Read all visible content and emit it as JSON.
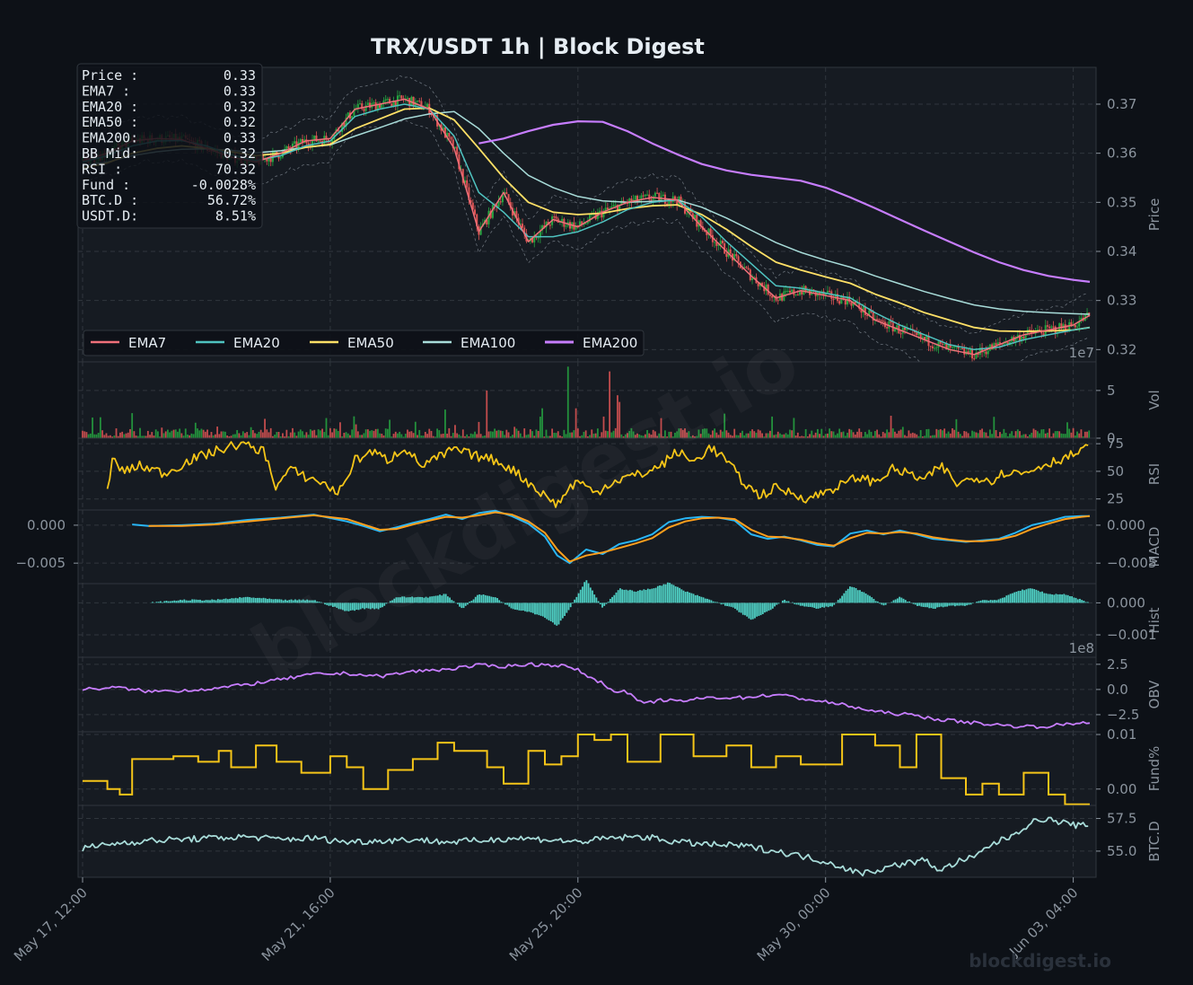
{
  "title": "TRX/USDT  1h  |  Block Digest",
  "watermark": "blockdigest.io",
  "footer_watermark": "blockdigest.io",
  "colors": {
    "background": "#0d1117",
    "panel": "#161b22",
    "grid": "#30363d",
    "up": "#26a641",
    "down": "#e05555",
    "ema7": "#f0707a",
    "ema20": "#4fc3c0",
    "ema50": "#ffe066",
    "ema100": "#a8dcd9",
    "ema200": "#c77dff",
    "rsi": "#f5c518",
    "macd": "#29b6f6",
    "signal": "#ff9f1c",
    "hist": "#4fd1c5",
    "obv": "#c77dff",
    "funding": "#f5c518",
    "btcd": "#a8dcd9"
  },
  "info_box": [
    {
      "label": "Price :",
      "value": "0.33"
    },
    {
      "label": "EMA7  :",
      "value": "0.33"
    },
    {
      "label": "EMA20 :",
      "value": "0.32"
    },
    {
      "label": "EMA50 :",
      "value": "0.32"
    },
    {
      "label": "EMA200:",
      "value": "0.33"
    },
    {
      "label": "BB Mid:",
      "value": "0.32"
    },
    {
      "label": "RSI   :",
      "value": "70.32"
    },
    {
      "label": "Fund  :",
      "value": "-0.0028%"
    },
    {
      "label": "BTC.D :",
      "value": "56.72%"
    },
    {
      "label": "USDT.D:",
      "value": "8.51%"
    }
  ],
  "legend": [
    "EMA7",
    "EMA20",
    "EMA50",
    "EMA100",
    "EMA200"
  ],
  "x_ticks": [
    "May 17, 12:00",
    "May 21, 16:00",
    "May 25, 20:00",
    "May 30, 00:00",
    "Jun 03, 04:00"
  ],
  "chart_data": [
    {
      "type": "line",
      "panel": "price",
      "ylabel": "Price",
      "ylim": [
        0.3175,
        0.3775
      ],
      "yticks": [
        0.32,
        0.33,
        0.34,
        0.35,
        0.36,
        0.37
      ],
      "ytick_labels": [
        "0.32",
        "0.33",
        "0.34",
        "0.35",
        "0.36",
        "0.37"
      ],
      "x": [
        0,
        30,
        60,
        90,
        120,
        150,
        180,
        210,
        240,
        270,
        300,
        330,
        360,
        390,
        420,
        450,
        480,
        510,
        540,
        570,
        600,
        630,
        660,
        690,
        720,
        750,
        780,
        810,
        840,
        870,
        900,
        930,
        960,
        990,
        1020,
        1050,
        1080,
        1110,
        1140,
        1170,
        1200,
        1220
      ],
      "series": [
        {
          "name": "EMA7",
          "values": [
            0.3585,
            0.36,
            0.3625,
            0.363,
            0.3628,
            0.361,
            0.3592,
            0.3582,
            0.36,
            0.3625,
            0.363,
            0.369,
            0.37,
            0.371,
            0.369,
            0.361,
            0.344,
            0.352,
            0.342,
            0.3465,
            0.345,
            0.348,
            0.35,
            0.351,
            0.3505,
            0.345,
            0.34,
            0.335,
            0.3305,
            0.332,
            0.331,
            0.33,
            0.326,
            0.324,
            0.322,
            0.32,
            0.319,
            0.321,
            0.323,
            0.324,
            0.325,
            0.327
          ]
        },
        {
          "name": "EMA20",
          "values": [
            0.3582,
            0.3595,
            0.3615,
            0.3625,
            0.3626,
            0.3615,
            0.3597,
            0.3585,
            0.3595,
            0.3615,
            0.3625,
            0.3675,
            0.369,
            0.37,
            0.369,
            0.3635,
            0.352,
            0.348,
            0.343,
            0.343,
            0.344,
            0.346,
            0.3485,
            0.35,
            0.3505,
            0.347,
            0.342,
            0.3375,
            0.333,
            0.3325,
            0.3315,
            0.3305,
            0.3275,
            0.325,
            0.323,
            0.321,
            0.32,
            0.3205,
            0.322,
            0.323,
            0.324,
            0.3245
          ]
        },
        {
          "name": "EMA50",
          "values": [
            0.357,
            0.358,
            0.36,
            0.361,
            0.3615,
            0.361,
            0.3603,
            0.3595,
            0.36,
            0.3612,
            0.3618,
            0.365,
            0.367,
            0.369,
            0.3692,
            0.3668,
            0.361,
            0.355,
            0.35,
            0.348,
            0.3475,
            0.3478,
            0.3487,
            0.3493,
            0.3495,
            0.3475,
            0.3445,
            0.341,
            0.3378,
            0.3362,
            0.3348,
            0.3335,
            0.3313,
            0.3295,
            0.3275,
            0.326,
            0.3245,
            0.3238,
            0.3237,
            0.3238,
            0.324,
            0.3245
          ]
        },
        {
          "name": "EMA100",
          "values": [
            0.3575,
            0.3582,
            0.3595,
            0.3603,
            0.3608,
            0.3609,
            0.3606,
            0.3601,
            0.3605,
            0.3612,
            0.3617,
            0.3635,
            0.3652,
            0.367,
            0.368,
            0.3685,
            0.365,
            0.36,
            0.3555,
            0.353,
            0.3512,
            0.3503,
            0.35,
            0.3502,
            0.3505,
            0.349,
            0.3468,
            0.3443,
            0.3418,
            0.3398,
            0.3382,
            0.3368,
            0.335,
            0.3334,
            0.3318,
            0.3304,
            0.3291,
            0.3283,
            0.3278,
            0.3275,
            0.3273,
            0.3272
          ]
        },
        {
          "name": "EMA200",
          "values": [
            null,
            null,
            null,
            null,
            null,
            null,
            null,
            null,
            null,
            null,
            null,
            null,
            null,
            null,
            null,
            null,
            0.362,
            0.363,
            0.3645,
            0.3658,
            0.3665,
            0.3664,
            0.3645,
            0.362,
            0.3598,
            0.3578,
            0.3565,
            0.3556,
            0.355,
            0.3544,
            0.353,
            0.351,
            0.3488,
            0.3465,
            0.3442,
            0.342,
            0.3398,
            0.3378,
            0.3362,
            0.335,
            0.3342,
            0.3338
          ]
        }
      ]
    },
    {
      "type": "bar",
      "panel": "volume",
      "ylabel": "Vol",
      "scale_label": "1e7",
      "ylim": [
        0,
        8
      ],
      "yticks": [
        0,
        5
      ],
      "ytick_labels": [
        "0",
        "5"
      ],
      "spikes": [
        {
          "x": 440,
          "v": 3.0
        },
        {
          "x": 490,
          "v": 5.0
        },
        {
          "x": 588,
          "v": 7.5
        },
        {
          "x": 638,
          "v": 7.0
        },
        {
          "x": 648,
          "v": 4.5
        },
        {
          "x": 650,
          "v": 3.8
        }
      ]
    },
    {
      "type": "line",
      "panel": "rsi",
      "ylabel": "RSI",
      "ylim": [
        15,
        80
      ],
      "yticks": [
        25,
        50,
        75
      ],
      "ytick_labels": [
        "25",
        "50",
        "75"
      ],
      "x": [
        30,
        36,
        50,
        70,
        100,
        130,
        160,
        190,
        220,
        235,
        250,
        270,
        290,
        310,
        330,
        350,
        370,
        390,
        410,
        430,
        450,
        470,
        500,
        520,
        540,
        560,
        575,
        590,
        600,
        620,
        640,
        660,
        680,
        700,
        720,
        740,
        760,
        780,
        800,
        820,
        840,
        860,
        880,
        900,
        920,
        940,
        960,
        980,
        1000,
        1020,
        1040,
        1060,
        1080,
        1100,
        1120,
        1140,
        1160,
        1180,
        1200,
        1220
      ],
      "values": [
        32,
        60,
        50,
        55,
        48,
        60,
        68,
        75,
        68,
        35,
        52,
        45,
        40,
        30,
        60,
        68,
        60,
        72,
        55,
        62,
        70,
        65,
        60,
        52,
        40,
        28,
        20,
        35,
        42,
        30,
        40,
        45,
        48,
        55,
        68,
        58,
        72,
        60,
        40,
        28,
        35,
        30,
        25,
        32,
        38,
        45,
        40,
        52,
        48,
        42,
        55,
        38,
        45,
        42,
        50,
        48,
        55,
        60,
        65,
        72
      ]
    },
    {
      "type": "line",
      "panel": "macd",
      "ylabel": "MACD",
      "ylim": [
        -0.0077,
        0.002
      ],
      "yticks": [
        0.0,
        -0.005
      ],
      "ytick_labels": [
        "0.000",
        "−0.005"
      ],
      "x": [
        60,
        80,
        120,
        160,
        200,
        240,
        280,
        320,
        340,
        360,
        380,
        400,
        420,
        440,
        460,
        480,
        500,
        520,
        540,
        560,
        575,
        590,
        610,
        630,
        650,
        670,
        690,
        710,
        730,
        750,
        770,
        790,
        810,
        830,
        850,
        870,
        890,
        910,
        930,
        950,
        970,
        990,
        1010,
        1030,
        1050,
        1070,
        1090,
        1110,
        1130,
        1150,
        1170,
        1190,
        1210,
        1220
      ],
      "series": [
        {
          "name": "MACD",
          "values": [
            0.0001,
            -0.0001,
            0.0,
            0.0002,
            0.0007,
            0.001,
            0.0014,
            0.0005,
            -0.0001,
            -0.0008,
            -0.0003,
            0.0003,
            0.0008,
            0.0014,
            0.0008,
            0.0016,
            0.0019,
            0.0012,
            0.0002,
            -0.0015,
            -0.004,
            -0.005,
            -0.0032,
            -0.0038,
            -0.0025,
            -0.002,
            -0.0012,
            0.0004,
            0.0009,
            0.0011,
            0.001,
            0.0006,
            -0.0012,
            -0.0018,
            -0.0015,
            -0.002,
            -0.0026,
            -0.0028,
            -0.0011,
            -0.0007,
            -0.0012,
            -0.0007,
            -0.0012,
            -0.0018,
            -0.002,
            -0.0022,
            -0.002,
            -0.0018,
            -0.001,
            0.0,
            0.0005,
            0.0011,
            0.0012,
            0.0012
          ]
        },
        {
          "name": "Signal",
          "values": [
            null,
            -0.0001,
            -0.0001,
            0.0001,
            0.0005,
            0.0009,
            0.0013,
            0.0008,
            0.0001,
            -0.0006,
            -0.0005,
            0.0001,
            0.0006,
            0.0011,
            0.001,
            0.0013,
            0.0017,
            0.0014,
            0.0005,
            -0.001,
            -0.0032,
            -0.0048,
            -0.004,
            -0.0036,
            -0.003,
            -0.0024,
            -0.0017,
            -0.0003,
            0.0005,
            0.0009,
            0.001,
            0.0008,
            -0.0006,
            -0.0015,
            -0.0016,
            -0.0019,
            -0.0024,
            -0.0027,
            -0.0017,
            -0.001,
            -0.0011,
            -0.0009,
            -0.0011,
            -0.0016,
            -0.0019,
            -0.0021,
            -0.0021,
            -0.0019,
            -0.0014,
            -0.0005,
            0.0002,
            0.0008,
            0.0011,
            0.0012
          ]
        }
      ]
    },
    {
      "type": "bar",
      "panel": "hist",
      "ylabel": "Hist",
      "ylim": [
        -0.0017,
        0.0006
      ],
      "yticks": [
        0.0,
        -0.001
      ],
      "ytick_labels": [
        "0.000",
        "−0.001"
      ]
    },
    {
      "type": "line",
      "panel": "obv",
      "ylabel": "OBV",
      "scale_label": "1e8",
      "ylim": [
        -4.2,
        3.2
      ],
      "yticks": [
        2.5,
        0.0,
        -2.5
      ],
      "ytick_labels": [
        "2.5",
        "0.0",
        "−2.5"
      ],
      "x": [
        0,
        40,
        80,
        120,
        160,
        200,
        240,
        280,
        320,
        360,
        400,
        440,
        480,
        510,
        540,
        580,
        600,
        620,
        630,
        640,
        660,
        680,
        700,
        720,
        760,
        800,
        840,
        880,
        920,
        960,
        1000,
        1040,
        1080,
        1120,
        1160,
        1200,
        1220
      ],
      "values": [
        0.0,
        0.2,
        -0.2,
        -0.1,
        0.1,
        0.5,
        1.0,
        1.5,
        1.6,
        1.3,
        1.8,
        2.0,
        2.4,
        2.3,
        2.5,
        2.4,
        1.9,
        1.0,
        0.6,
        0.0,
        -0.3,
        -1.5,
        -1.0,
        -1.2,
        -0.8,
        -0.8,
        -0.5,
        -1.0,
        -1.5,
        -2.2,
        -2.5,
        -3.0,
        -3.3,
        -3.6,
        -3.7,
        -3.4,
        -3.2
      ]
    },
    {
      "type": "line",
      "panel": "funding",
      "ylabel": "Fund%",
      "ylim": [
        -0.003,
        0.0105
      ],
      "yticks": [
        0.01,
        0.0
      ],
      "ytick_labels": [
        "0.01",
        "0.00"
      ],
      "x": [
        0,
        30,
        45,
        60,
        110,
        140,
        165,
        180,
        210,
        235,
        265,
        300,
        320,
        340,
        370,
        400,
        430,
        450,
        490,
        510,
        540,
        560,
        580,
        600,
        620,
        640,
        660,
        700,
        740,
        780,
        810,
        840,
        870,
        920,
        960,
        990,
        1010,
        1040,
        1070,
        1090,
        1110,
        1140,
        1170,
        1190,
        1220
      ],
      "values": [
        0.0015,
        0.0,
        -0.001,
        0.0055,
        0.006,
        0.005,
        0.007,
        0.004,
        0.008,
        0.005,
        0.003,
        0.006,
        0.004,
        0.0,
        0.0035,
        0.0055,
        0.0085,
        0.007,
        0.004,
        0.001,
        0.007,
        0.0045,
        0.006,
        0.01,
        0.009,
        0.01,
        0.005,
        0.01,
        0.006,
        0.008,
        0.004,
        0.006,
        0.0045,
        0.01,
        0.008,
        0.004,
        0.01,
        0.002,
        -0.001,
        0.001,
        -0.001,
        0.003,
        -0.001,
        -0.0028,
        -0.0028
      ]
    },
    {
      "type": "line",
      "panel": "btcd",
      "ylabel": "BTC.D",
      "ylim": [
        53.0,
        58.5
      ],
      "yticks": [
        57.5,
        55.0
      ],
      "ytick_labels": [
        "57.5",
        "55.0"
      ],
      "x": [
        0,
        40,
        80,
        120,
        160,
        200,
        240,
        280,
        320,
        360,
        400,
        440,
        480,
        520,
        560,
        600,
        640,
        680,
        720,
        760,
        800,
        840,
        880,
        900,
        920,
        940,
        960,
        990,
        1020,
        1040,
        1060,
        1080,
        1100,
        1120,
        1140,
        1160,
        1180,
        1200,
        1220
      ],
      "values": [
        55.2,
        55.6,
        55.8,
        55.9,
        56.0,
        56.1,
        55.9,
        56.0,
        55.7,
        55.8,
        55.9,
        55.7,
        55.8,
        56.0,
        55.9,
        55.7,
        56.0,
        56.1,
        55.7,
        55.5,
        55.4,
        55.0,
        54.5,
        54.2,
        53.8,
        53.3,
        53.5,
        54.0,
        54.3,
        53.5,
        54.2,
        54.5,
        55.5,
        56.0,
        56.8,
        57.5,
        57.3,
        57.0,
        56.9
      ]
    }
  ]
}
